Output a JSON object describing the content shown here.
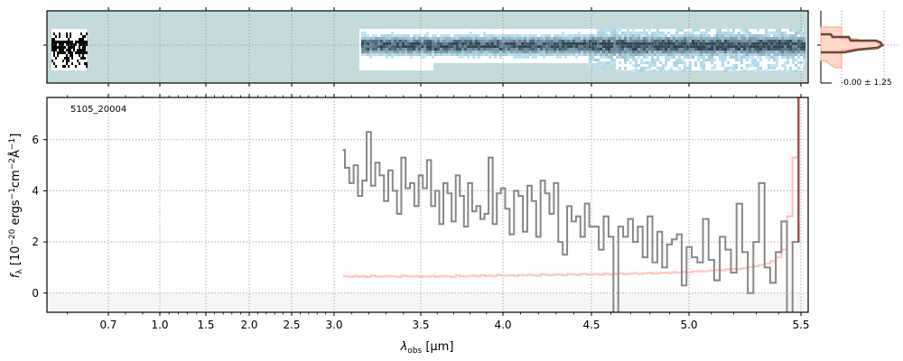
{
  "chart_data": {
    "type": "line",
    "object_label": "5105_20004",
    "xlabel": "λobs [μm]",
    "xlabel_main": "λ",
    "xlabel_sub": "obs",
    "xlabel_unit": " [μm]",
    "ylabel_parts": [
      "f",
      "λ",
      " [10",
      "−20",
      " ergs",
      "−1",
      "cm",
      "−2",
      "Å",
      "−1",
      "]"
    ],
    "xticks": [
      0.7,
      1.0,
      1.5,
      2.0,
      2.5,
      3.0,
      3.5,
      4.0,
      4.5,
      5.0,
      5.5
    ],
    "xtick_labels": [
      "0.7",
      "1.0",
      "1.5",
      "2.0",
      "2.5",
      "3.0",
      "3.5",
      "4.0",
      "4.5",
      "5.0",
      "5.5"
    ],
    "yticks": [
      0,
      2,
      4,
      6
    ],
    "ytick_labels": [
      "0",
      "2",
      "4",
      "6"
    ],
    "ylim": [
      -0.75,
      7.65
    ],
    "xlim": [
      0.55,
      5.52
    ],
    "grid": true,
    "x_start": 3.05,
    "x_step": 0.025,
    "series": [
      {
        "role": "flux",
        "color": "#888888",
        "values": [
          5.6,
          4.9,
          4.3,
          5.0,
          3.8,
          4.4,
          6.3,
          4.2,
          5.1,
          4.6,
          3.6,
          4.8,
          4.0,
          3.1,
          5.3,
          4.1,
          4.3,
          3.4,
          4.6,
          4.1,
          5.2,
          3.4,
          4.0,
          2.7,
          4.3,
          3.9,
          2.8,
          4.6,
          3.8,
          2.6,
          4.3,
          3.2,
          3.4,
          2.9,
          3.1,
          5.3,
          2.7,
          3.9,
          4.1,
          3.3,
          2.3,
          4.0,
          3.8,
          2.4,
          4.2,
          3.6,
          2.2,
          4.4,
          3.9,
          3.1,
          4.3,
          2.0,
          1.5,
          3.4,
          2.8,
          3.0,
          2.2,
          3.5,
          2.6,
          2.6,
          1.7,
          3.0,
          2.2,
          -0.9,
          2.6,
          2.2,
          2.9,
          2.0,
          2.6,
          1.4,
          3.0,
          1.2,
          2.4,
          1.0,
          1.9,
          2.1,
          2.3,
          0.3,
          1.8,
          1.4,
          1.2,
          2.9,
          1.3,
          0.5,
          2.2,
          1.7,
          0.8,
          3.5,
          1.6,
          0.0,
          2.0,
          4.3,
          1.0,
          0.4,
          1.6,
          2.8,
          -0.8,
          2.0,
          7.6
        ]
      },
      {
        "role": "uncertainty",
        "color": "#ffb0b0",
        "values": [
          0.65,
          0.66,
          0.64,
          0.67,
          0.65,
          0.66,
          0.63,
          0.68,
          0.65,
          0.64,
          0.67,
          0.66,
          0.65,
          0.63,
          0.68,
          0.66,
          0.65,
          0.67,
          0.64,
          0.66,
          0.65,
          0.68,
          0.64,
          0.66,
          0.67,
          0.65,
          0.63,
          0.69,
          0.66,
          0.65,
          0.67,
          0.68,
          0.66,
          0.7,
          0.67,
          0.68,
          0.66,
          0.71,
          0.69,
          0.68,
          0.7,
          0.67,
          0.71,
          0.69,
          0.72,
          0.7,
          0.68,
          0.74,
          0.71,
          0.7,
          0.73,
          0.72,
          0.7,
          0.74,
          0.73,
          0.71,
          0.75,
          0.73,
          0.72,
          0.74,
          0.72,
          0.76,
          0.73,
          0.75,
          0.77,
          0.74,
          0.76,
          0.78,
          0.75,
          0.77,
          0.79,
          0.76,
          0.78,
          0.8,
          0.78,
          0.82,
          0.8,
          0.83,
          0.81,
          0.84,
          0.86,
          0.85,
          0.88,
          0.9,
          0.89,
          0.93,
          0.95,
          0.94,
          0.98,
          1.02,
          1.05,
          1.1,
          1.15,
          1.25,
          1.4,
          1.7,
          3.0,
          5.3,
          7.6
        ]
      }
    ],
    "spectrum2d": {
      "colormap": "bone_r",
      "background": "#c5dbdb"
    },
    "inset": {
      "label": "-0.00 ± 1.25",
      "profile_color": "#3a3a3a",
      "model_color": "#ffa080"
    }
  }
}
